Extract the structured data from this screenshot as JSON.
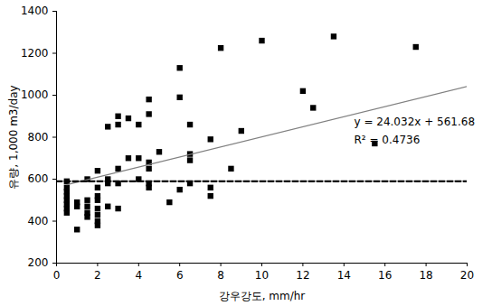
{
  "chart_data": {
    "type": "scatter",
    "x_label": "강우강도, mm/hr",
    "y_label": "유량, 1,000 m3/day",
    "xlim": [
      0,
      20
    ],
    "xticks": [
      0,
      2,
      4,
      6,
      8,
      10,
      12,
      14,
      16,
      18,
      20
    ],
    "ylim": [
      200,
      1400
    ],
    "yticks": [
      200,
      400,
      600,
      800,
      1000,
      1200,
      1400
    ],
    "grid": false,
    "annotations": [
      "y = 24.032x + 561.68",
      "R² = 0.4736"
    ],
    "series": [
      {
        "type": "scatter",
        "marker": "square",
        "color": "#000000",
        "x": [
          0.5,
          0.5,
          0.5,
          0.5,
          0.5,
          0.5,
          0.5,
          0.5,
          1,
          1,
          1,
          1.5,
          1.5,
          1.5,
          1.5,
          1.5,
          2,
          2,
          2,
          2,
          2,
          2,
          2,
          2,
          2.5,
          2.5,
          2.5,
          2.5,
          3,
          3,
          3,
          3,
          3,
          3.5,
          3.5,
          4,
          4,
          4,
          4.5,
          4.5,
          4.5,
          4.5,
          4.5,
          4.5,
          5,
          5.5,
          6,
          6,
          6,
          6.5,
          6.5,
          6.5,
          6.5,
          7.5,
          7.5,
          7.5,
          8,
          8.5,
          9,
          10,
          12,
          12.5,
          13.5,
          15.5,
          17.5
        ],
        "values": [
          590,
          560,
          540,
          520,
          500,
          480,
          460,
          440,
          470,
          360,
          490,
          600,
          500,
          470,
          440,
          420,
          640,
          560,
          520,
          500,
          460,
          400,
          380,
          430,
          850,
          600,
          580,
          470,
          900,
          860,
          650,
          580,
          460,
          890,
          700,
          860,
          700,
          600,
          980,
          910,
          680,
          650,
          580,
          560,
          730,
          490,
          1130,
          990,
          550,
          860,
          720,
          690,
          580,
          790,
          560,
          520,
          1225,
          650,
          830,
          1260,
          1020,
          940,
          1280,
          770,
          1230
        ]
      },
      {
        "type": "line",
        "line_style": "solid",
        "color": "#808080",
        "x": [
          0.5,
          20
        ],
        "values": [
          574,
          1042
        ]
      },
      {
        "type": "line",
        "line_style": "dashed",
        "color": "#000000",
        "x": [
          0,
          20
        ],
        "values": [
          590,
          590
        ]
      }
    ]
  }
}
